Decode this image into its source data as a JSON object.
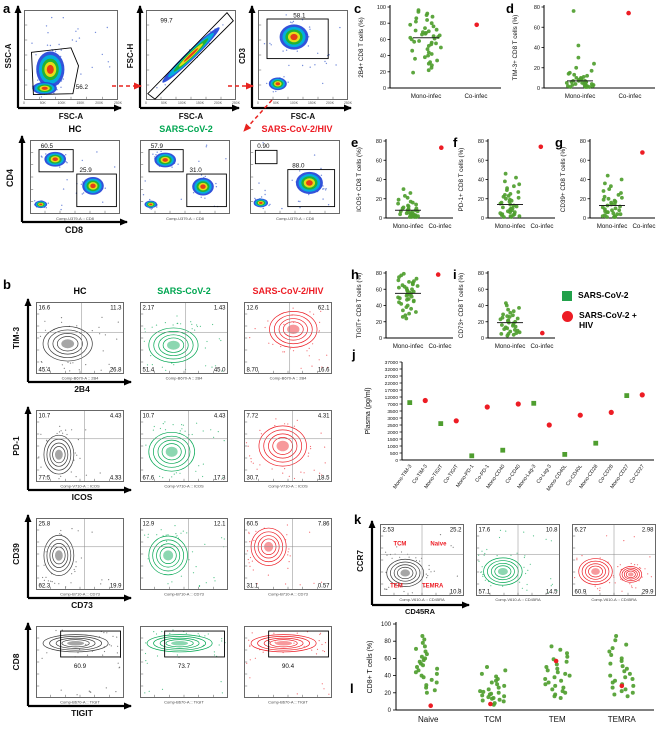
{
  "letters": {
    "a": "a",
    "b": "b",
    "c": "c",
    "d": "d",
    "e": "e",
    "f": "f",
    "g": "g",
    "h": "h",
    "i": "i",
    "j": "j",
    "k": "k",
    "l": "l"
  },
  "colors": {
    "green": "#00a651",
    "red": "#ed1c24",
    "dot_green": "#4f9e2f",
    "hc_contour": "#3a3a3a",
    "arrow_red": "#e8231f",
    "density_blue": "#2446d8"
  },
  "group_headers": [
    {
      "label": "HC",
      "color": "#000000"
    },
    {
      "label": "SARS-CoV-2",
      "color": "#00a651"
    },
    {
      "label": "SARS-CoV-2/HIV",
      "color": "#ed1c24"
    }
  ],
  "panel_a": {
    "gating": [
      {
        "ylabel": "SSC-A",
        "xlabel": "FSC-A",
        "gate_value": "56.2",
        "xticks": [
          "0",
          "50K",
          "100K",
          "150K",
          "200K",
          "250K"
        ]
      },
      {
        "ylabel": "FSC-H",
        "xlabel": "FSC-A",
        "gate_value": "99.7",
        "xticks": [
          "0",
          "50K",
          "100K",
          "150K",
          "200K",
          "250K"
        ]
      },
      {
        "ylabel": "CD3",
        "xlabel": "FSC-A",
        "gate_value": "58.1",
        "xticks": [
          "0",
          "50K",
          "100K",
          "150K",
          "200K",
          "250K"
        ]
      }
    ],
    "cd4cd8": {
      "ylabel": "CD4",
      "xlabel": "CD8",
      "caption": "Comp-U379-A :: CD8",
      "plots": [
        {
          "cd4_gate": "60.5",
          "cd8_gate": "25.9"
        },
        {
          "cd4_gate": "57.9",
          "cd8_gate": "31.0"
        },
        {
          "cd4_gate": "0.90",
          "cd8_gate": "88.0"
        }
      ]
    }
  },
  "panel_b": {
    "rows": [
      {
        "ylabel": "TIM-3",
        "xlabel": "2B4",
        "caption": "Comp-B670-A :: 2B4",
        "quads": [
          [
            "16.6",
            "11.3",
            "45.4",
            "26.8"
          ],
          [
            "2.17",
            "1.43",
            "51.4",
            "45.0"
          ],
          [
            "12.6",
            "62.1",
            "8.70",
            "16.6"
          ]
        ]
      },
      {
        "ylabel": "PD-1",
        "xlabel": "ICOS",
        "caption": "Comp-V710-A :: ICOS",
        "quads": [
          [
            "10.7",
            "4.43",
            "77.5",
            "4.33"
          ],
          [
            "10.7",
            "4.43",
            "67.6",
            "17.3"
          ],
          [
            "7.72",
            "4.31",
            "30.7",
            "18.5"
          ]
        ]
      },
      {
        "ylabel": "CD39",
        "xlabel": "CD73",
        "caption": "Comp-B710-A :: CD73",
        "quads": [
          [
            "25.8",
            "",
            "62.3",
            "19.9"
          ],
          [
            "12.9",
            "12.1",
            "",
            ""
          ],
          [
            "60.5",
            "7.86",
            "31.1",
            "0.57"
          ]
        ]
      },
      {
        "ylabel": "CD8",
        "xlabel": "TIGIT",
        "caption": "Comp-B670-A :: TIGIT",
        "gate_values": [
          "60.9",
          "73.7",
          "90.4"
        ]
      }
    ]
  },
  "dot_panels": [
    {
      "letter": "c",
      "ylabel": "2B4+ CD8 T cells (%)",
      "ylim": [
        0,
        100
      ],
      "yticks": [
        0,
        20,
        40,
        60,
        80,
        100
      ],
      "categories": [
        "Mono-infec",
        "Co-infec"
      ],
      "mono": [
        96,
        94,
        92,
        90,
        88,
        86,
        84,
        82,
        80,
        78,
        76,
        74,
        72,
        71,
        70,
        69,
        68,
        67,
        66,
        65,
        64,
        63,
        62,
        61,
        60,
        58,
        57,
        56,
        55,
        54,
        52,
        50,
        48,
        46,
        44,
        42,
        40,
        38,
        36,
        34,
        32,
        30,
        28,
        25,
        22,
        19
      ],
      "co": [
        78
      ]
    },
    {
      "letter": "d",
      "ylabel": "TIM-3+ CD8 T cells (%)",
      "ylim": [
        0,
        80
      ],
      "yticks": [
        0,
        20,
        40,
        60,
        80
      ],
      "categories": [
        "Mono-infec",
        "Co-infec"
      ],
      "mono": [
        76,
        42,
        30,
        24,
        20,
        17,
        15,
        14,
        13,
        12,
        11,
        10,
        10,
        9,
        9,
        8,
        8,
        7,
        7,
        7,
        6,
        6,
        6,
        5,
        5,
        5,
        4,
        4,
        4,
        3,
        3,
        3,
        2,
        2,
        2,
        2,
        1,
        1,
        1,
        1
      ],
      "co": [
        74
      ]
    },
    {
      "letter": "e",
      "ylabel": "ICOS+ CD8 T cells (%)",
      "ylim": [
        0,
        80
      ],
      "yticks": [
        0,
        20,
        40,
        60,
        80
      ],
      "categories": [
        "Mono-infec",
        "Co-infec"
      ],
      "mono": [
        30,
        26,
        23,
        21,
        19,
        17,
        16,
        15,
        14,
        13,
        12,
        11,
        10,
        10,
        9,
        9,
        8,
        8,
        7,
        7,
        6,
        6,
        5,
        5,
        4,
        4,
        3,
        3,
        3,
        2,
        2,
        2,
        1,
        1,
        1,
        1
      ],
      "co": [
        73
      ]
    },
    {
      "letter": "f",
      "ylabel": "PD-1+ CD8 T cells (%)",
      "ylim": [
        0,
        80
      ],
      "yticks": [
        0,
        20,
        40,
        60,
        80
      ],
      "categories": [
        "Mono-infec",
        "Co-infec"
      ],
      "mono": [
        46,
        42,
        38,
        35,
        33,
        31,
        29,
        27,
        25,
        24,
        23,
        22,
        21,
        20,
        19,
        18,
        17,
        16,
        15,
        14,
        13,
        12,
        11,
        10,
        10,
        9,
        8,
        8,
        7,
        6,
        6,
        5,
        4,
        4,
        3,
        3,
        2,
        2,
        1,
        1
      ],
      "co": [
        74
      ]
    },
    {
      "letter": "g",
      "ylabel": "CD39+ CD8 T cells (%)",
      "ylim": [
        0,
        80
      ],
      "yticks": [
        0,
        20,
        40,
        60,
        80
      ],
      "categories": [
        "Mono-infec",
        "Co-infec"
      ],
      "mono": [
        44,
        40,
        36,
        33,
        30,
        28,
        26,
        24,
        22,
        21,
        20,
        19,
        18,
        17,
        16,
        15,
        14,
        13,
        12,
        11,
        10,
        9,
        8,
        8,
        7,
        6,
        6,
        5,
        4,
        4,
        3,
        2,
        2,
        1,
        1,
        1
      ],
      "co": [
        68
      ]
    },
    {
      "letter": "h",
      "ylabel": "TIGIT+ CD8 T cells (%)",
      "ylim": [
        0,
        80
      ],
      "yticks": [
        0,
        20,
        40,
        60,
        80
      ],
      "categories": [
        "Mono-infec",
        "Co-infec"
      ],
      "mono": [
        79,
        77,
        75,
        73,
        71,
        70,
        69,
        68,
        67,
        66,
        65,
        64,
        63,
        62,
        61,
        60,
        59,
        58,
        57,
        56,
        55,
        54,
        53,
        52,
        51,
        50,
        49,
        48,
        47,
        46,
        45,
        44,
        42,
        40,
        38,
        36,
        34,
        32,
        30,
        28,
        26,
        24
      ],
      "co": [
        78
      ]
    },
    {
      "letter": "i",
      "ylabel": "CD73+ CD8 T cells (%)",
      "ylim": [
        0,
        80
      ],
      "yticks": [
        0,
        20,
        40,
        60,
        80
      ],
      "categories": [
        "Mono-infec",
        "Co-infec"
      ],
      "mono": [
        43,
        40,
        37,
        35,
        33,
        31,
        29,
        28,
        27,
        26,
        25,
        24,
        23,
        22,
        21,
        20,
        19,
        18,
        17,
        16,
        15,
        14,
        13,
        12,
        11,
        10,
        9,
        8,
        7,
        6,
        5,
        5,
        4,
        3
      ],
      "co": [
        6
      ]
    }
  ],
  "legend": {
    "items": [
      {
        "label": "SARS-CoV-2",
        "color": "#22a14b",
        "shape": "square"
      },
      {
        "label": "SARS-CoV-2 + HIV",
        "color": "#ed1c24",
        "shape": "circle"
      }
    ]
  },
  "panel_j": {
    "ylabel": "Plasma (pg/ml)",
    "yticks": [
      0,
      500,
      1000,
      1500,
      2000,
      2500,
      3000,
      3500,
      7000,
      12000,
      17000,
      22000,
      27000,
      32000,
      37000
    ],
    "categories": [
      "Mono-TIM-3",
      "Co-TIM-3",
      "Mono-TIGIT",
      "Co-TIGIT",
      "Mono-PD-1",
      "Co-PD-1",
      "Mono-CD40",
      "Co-CD40",
      "Mono-Lag-3",
      "Co-Lag-3",
      "Mono-CD40L",
      "Co-CD40L",
      "Mono-CD28",
      "Co-CD28",
      "Mono-CD27",
      "Co-CD27"
    ],
    "values": [
      8000,
      9500,
      2600,
      2800,
      300,
      5500,
      700,
      7000,
      7500,
      2500,
      400,
      3200,
      1200,
      3400,
      13000,
      13500
    ]
  },
  "panel_k": {
    "ylabel": "CCR7",
    "xlabel": "CD45RA",
    "caption": "Comp-V610-A :: CD45RA",
    "quadrant_names": [
      "TCM",
      "Naive",
      "TEM",
      "TEMRA"
    ],
    "quads": [
      [
        "2.53",
        "25.2",
        "",
        "10.8"
      ],
      [
        "17.6",
        "10.8",
        "57.1",
        "14.5"
      ],
      [
        "6.27",
        "2.98",
        "60.9",
        "29.9"
      ]
    ]
  },
  "panel_l": {
    "ylabel": "CD8+ T cells (%)",
    "ylim": [
      0,
      100
    ],
    "yticks": [
      0,
      20,
      40,
      60,
      80,
      100
    ],
    "groups": [
      {
        "label": "Naive",
        "mono": [
          86,
          82,
          78,
          74,
          71,
          68,
          65,
          62,
          60,
          58,
          56,
          54,
          52,
          50,
          48,
          46,
          44,
          42,
          40,
          38,
          35,
          32,
          29,
          26,
          23,
          20
        ],
        "co": [
          5
        ]
      },
      {
        "label": "TCM",
        "mono": [
          50,
          46,
          42,
          39,
          36,
          34,
          32,
          30,
          28,
          26,
          24,
          22,
          21,
          20,
          19,
          18,
          17,
          16,
          15,
          14,
          13,
          12,
          11,
          10,
          8,
          6
        ],
        "co": [
          7
        ]
      },
      {
        "label": "TEM",
        "mono": [
          74,
          70,
          66,
          62,
          59,
          56,
          53,
          50,
          48,
          46,
          44,
          42,
          40,
          38,
          36,
          34,
          32,
          30,
          28,
          26,
          24,
          22,
          20,
          18,
          16,
          14
        ],
        "co": [
          57
        ]
      },
      {
        "label": "TEMRA",
        "mono": [
          86,
          81,
          76,
          72,
          68,
          64,
          60,
          57,
          54,
          51,
          48,
          45,
          42,
          40,
          38,
          36,
          34,
          32,
          30,
          28,
          26,
          24,
          22,
          20,
          18,
          16
        ],
        "co": [
          28
        ]
      }
    ]
  }
}
